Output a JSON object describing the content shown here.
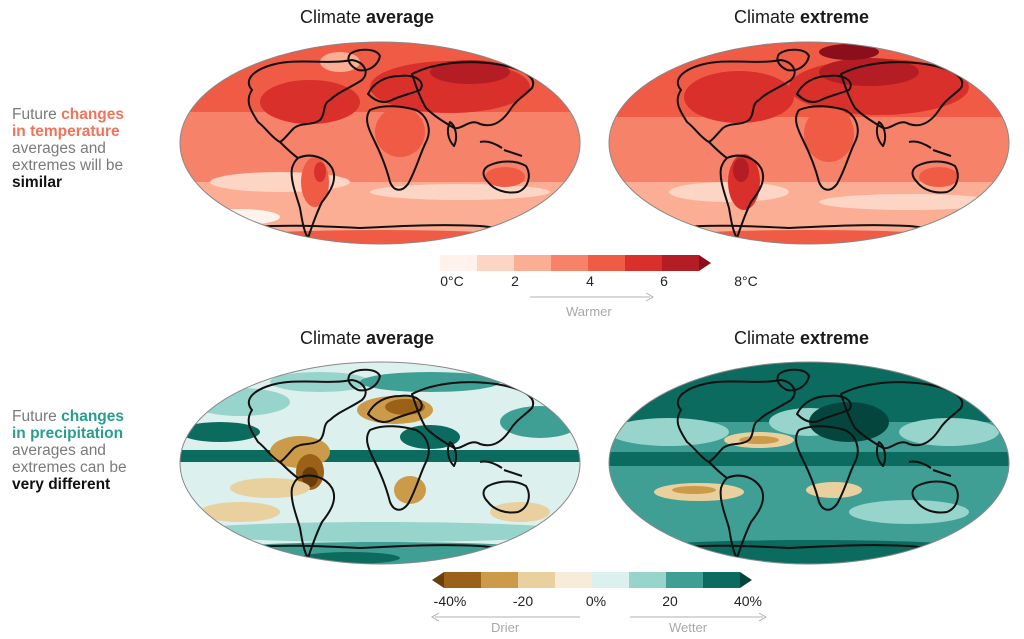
{
  "panels": {
    "temp_avg": {
      "title_prefix": "Climate ",
      "title_bold": "average"
    },
    "temp_ext": {
      "title_prefix": "Climate ",
      "title_bold": "extreme"
    },
    "prec_avg": {
      "title_prefix": "Climate ",
      "title_bold": "average"
    },
    "prec_ext": {
      "title_prefix": "Climate ",
      "title_bold": "extreme"
    }
  },
  "side_temp": {
    "l1": "Future ",
    "l1_em": "changes",
    "l2_em": "in temperature",
    "l3": "averages and",
    "l4": "extremes will be",
    "l5": "similar",
    "accent": "#f0735a"
  },
  "side_prec": {
    "l1": "Future ",
    "l1_em": "changes",
    "l2_em": "in precipitation",
    "l3": "averages and",
    "l4": "extremes can be",
    "l5": "very different",
    "accent": "#2a9d8f"
  },
  "temp_scale": {
    "labels": [
      "0°C",
      "2",
      "4",
      "6",
      "8°C"
    ],
    "colors": [
      "#fff1ec",
      "#fdd5c4",
      "#fcae94",
      "#f7826a",
      "#ef5b44",
      "#d9302b",
      "#b41d24",
      "#8a0f1a"
    ],
    "arrow_label": "Warmer"
  },
  "prec_scale": {
    "labels": [
      "-40%",
      "-20",
      "0%",
      "20",
      "40%"
    ],
    "colors": [
      "#6b3d09",
      "#9c6118",
      "#cc9b4a",
      "#e8d19e",
      "#f6ecd8",
      "#dcf0ed",
      "#97d4cb",
      "#3f9f94",
      "#0b6b5f",
      "#04463e"
    ],
    "arrow_left": "Drier",
    "arrow_right": "Wetter"
  }
}
